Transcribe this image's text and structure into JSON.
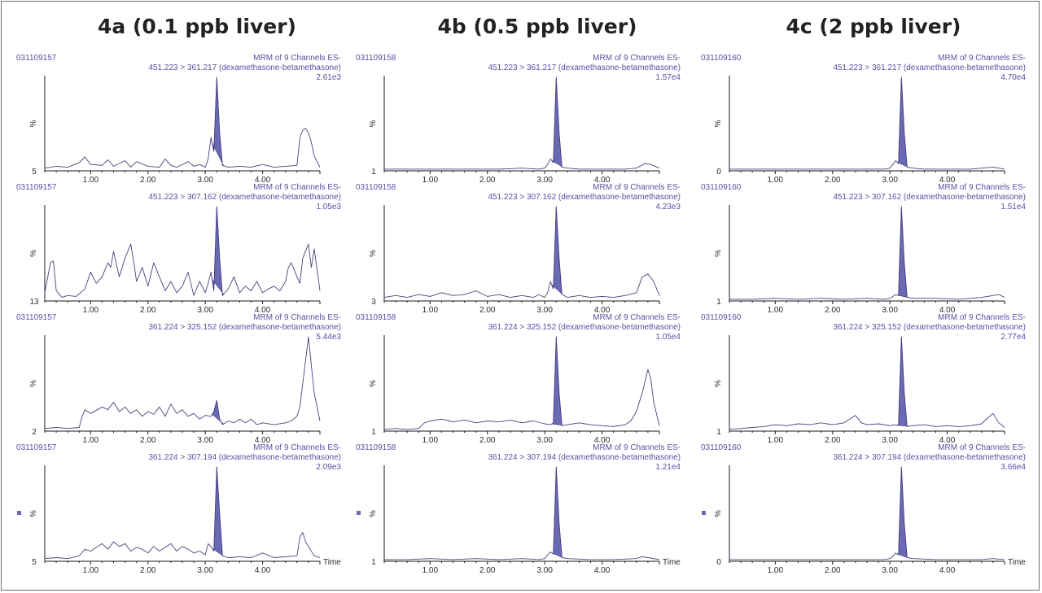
{
  "figure": {
    "column_titles": [
      "4a (0.1 ppb liver)",
      "4b (0.5 ppb liver)",
      "4c (2 ppb liver)"
    ],
    "percent_label": "%",
    "time_label": "Time",
    "colors": {
      "trace": "#4a4180",
      "peak_fill": "#6a6ab4",
      "text": "#5a4fa3",
      "axis": "#1a1a1a"
    }
  },
  "chart_data": [
    {
      "type": "line",
      "column": "4a (0.1 ppb liver)",
      "sample_id": "031109157",
      "header": "MRM of 9 Channels ES-",
      "transition": "451.223 > 361.217 (dexamethasone-betamethasone)",
      "intensity": "2.61e3",
      "y_min_label": "5",
      "xticks": [
        "1.00",
        "2.00",
        "3.00",
        "4.00"
      ],
      "xlim": [
        0.2,
        5.0
      ],
      "ylim": [
        0,
        100
      ],
      "peak": {
        "start": 3.12,
        "end": 3.32
      },
      "x": [
        0.2,
        0.4,
        0.6,
        0.8,
        0.9,
        1.0,
        1.2,
        1.3,
        1.4,
        1.6,
        1.7,
        1.8,
        2.0,
        2.2,
        2.3,
        2.4,
        2.5,
        2.7,
        2.8,
        2.9,
        3.0,
        3.05,
        3.1,
        3.15,
        3.2,
        3.25,
        3.3,
        3.4,
        3.6,
        3.8,
        4.0,
        4.2,
        4.4,
        4.6,
        4.65,
        4.7,
        4.75,
        4.8,
        4.85,
        4.9,
        5.0
      ],
      "y": [
        2,
        4,
        3,
        8,
        14,
        6,
        5,
        11,
        4,
        10,
        3,
        9,
        4,
        3,
        12,
        5,
        3,
        9,
        4,
        6,
        3,
        12,
        35,
        20,
        100,
        40,
        5,
        3,
        4,
        3,
        6,
        3,
        4,
        5,
        35,
        43,
        45,
        40,
        30,
        15,
        3
      ]
    },
    {
      "type": "line",
      "column": "4a (0.1 ppb liver)",
      "sample_id": "031109157",
      "header": "MRM of 9 Channels ES-",
      "transition": "451.223 > 307.162 (dexamethasone-betamethasone)",
      "intensity": "1.05e3",
      "y_min_label": "13",
      "xticks": [
        "1.00",
        "2.00",
        "3.00",
        "4.00"
      ],
      "xlim": [
        0.2,
        5.0
      ],
      "ylim": [
        0,
        100
      ],
      "peak": {
        "start": 3.12,
        "end": 3.32
      },
      "x": [
        0.2,
        0.3,
        0.35,
        0.4,
        0.5,
        0.6,
        0.75,
        0.9,
        1.0,
        1.1,
        1.2,
        1.3,
        1.35,
        1.4,
        1.5,
        1.6,
        1.7,
        1.75,
        1.8,
        1.9,
        2.0,
        2.1,
        2.2,
        2.3,
        2.4,
        2.5,
        2.6,
        2.7,
        2.8,
        2.9,
        3.0,
        3.05,
        3.1,
        3.15,
        3.2,
        3.25,
        3.3,
        3.4,
        3.5,
        3.6,
        3.7,
        3.8,
        3.9,
        4.0,
        4.1,
        4.2,
        4.3,
        4.4,
        4.45,
        4.5,
        4.6,
        4.65,
        4.7,
        4.8,
        4.85,
        4.9,
        5.0
      ],
      "y": [
        8,
        40,
        42,
        10,
        3,
        5,
        4,
        12,
        30,
        18,
        25,
        40,
        35,
        52,
        25,
        45,
        60,
        42,
        20,
        35,
        15,
        40,
        25,
        10,
        20,
        8,
        15,
        30,
        5,
        20,
        8,
        18,
        30,
        10,
        100,
        45,
        5,
        12,
        25,
        8,
        15,
        10,
        20,
        8,
        12,
        15,
        10,
        20,
        35,
        40,
        25,
        18,
        45,
        60,
        35,
        55,
        10
      ]
    },
    {
      "type": "line",
      "column": "4a (0.1 ppb liver)",
      "sample_id": "031109157",
      "header": "MRM of 9 Channels ES-",
      "transition": "361.224 > 325.152 (dexamethasone-betamethasone)",
      "intensity": "5.44e3",
      "y_min_label": "2",
      "xticks": [
        "1.00",
        "2.00",
        "3.00",
        "4.00"
      ],
      "xlim": [
        0.2,
        5.0
      ],
      "ylim": [
        0,
        100
      ],
      "peak": {
        "start": 3.12,
        "end": 3.32
      },
      "x": [
        0.2,
        0.4,
        0.6,
        0.8,
        0.85,
        0.9,
        1.0,
        1.2,
        1.3,
        1.4,
        1.5,
        1.6,
        1.7,
        1.8,
        1.9,
        2.0,
        2.1,
        2.2,
        2.3,
        2.4,
        2.5,
        2.6,
        2.7,
        2.8,
        2.9,
        3.0,
        3.1,
        3.15,
        3.2,
        3.25,
        3.3,
        3.4,
        3.5,
        3.6,
        3.7,
        3.8,
        3.9,
        4.0,
        4.2,
        4.4,
        4.5,
        4.6,
        4.65,
        4.7,
        4.75,
        4.8,
        4.85,
        4.9,
        5.0
      ],
      "y": [
        2,
        3,
        2,
        3,
        15,
        22,
        18,
        25,
        22,
        30,
        20,
        25,
        18,
        22,
        15,
        20,
        17,
        25,
        15,
        28,
        18,
        22,
        15,
        18,
        12,
        16,
        15,
        20,
        32,
        12,
        6,
        10,
        8,
        12,
        8,
        12,
        6,
        8,
        6,
        8,
        10,
        15,
        25,
        50,
        75,
        100,
        70,
        40,
        10
      ]
    },
    {
      "type": "line",
      "column": "4a (0.1 ppb liver)",
      "sample_id": "031109157",
      "header": "MRM of 9 Channels ES-",
      "transition": "361.224 > 307.194 (dexamethasone-betamethasone)",
      "intensity": "2.09e3",
      "y_min_label": "5",
      "xticks": [
        "1.00",
        "2.00",
        "3.00",
        "4.00"
      ],
      "xlim": [
        0.2,
        5.0
      ],
      "ylim": [
        0,
        100
      ],
      "peak": {
        "start": 3.12,
        "end": 3.32
      },
      "x": [
        0.2,
        0.4,
        0.6,
        0.8,
        0.9,
        1.0,
        1.1,
        1.2,
        1.3,
        1.4,
        1.5,
        1.6,
        1.7,
        1.8,
        1.9,
        2.0,
        2.1,
        2.2,
        2.3,
        2.4,
        2.5,
        2.6,
        2.7,
        2.8,
        2.9,
        3.0,
        3.05,
        3.1,
        3.15,
        3.2,
        3.25,
        3.3,
        3.4,
        3.6,
        3.8,
        4.0,
        4.2,
        4.4,
        4.6,
        4.65,
        4.7,
        4.75,
        4.8,
        4.9,
        5.0
      ],
      "y": [
        2,
        3,
        2,
        5,
        12,
        10,
        14,
        18,
        12,
        20,
        15,
        18,
        10,
        14,
        12,
        8,
        15,
        10,
        14,
        18,
        10,
        15,
        12,
        8,
        10,
        6,
        18,
        15,
        10,
        100,
        50,
        5,
        3,
        4,
        3,
        8,
        3,
        4,
        5,
        25,
        30,
        20,
        15,
        5,
        3
      ]
    },
    {
      "type": "line",
      "column": "4b (0.5 ppb liver)",
      "sample_id": "031109158",
      "header": "MRM of 9 Channels ES-",
      "transition": "451.223 > 361.217 (dexamethasone-betamethasone)",
      "intensity": "1.57e4",
      "y_min_label": "1",
      "xticks": [
        "1.00",
        "2.00",
        "3.00",
        "4.00"
      ],
      "xlim": [
        0.2,
        5.0
      ],
      "ylim": [
        0,
        100
      ],
      "peak": {
        "start": 3.12,
        "end": 3.32
      },
      "x": [
        0.2,
        0.6,
        1.0,
        1.4,
        1.8,
        2.2,
        2.6,
        2.9,
        3.0,
        3.05,
        3.1,
        3.15,
        3.2,
        3.25,
        3.3,
        3.4,
        3.6,
        4.0,
        4.4,
        4.6,
        4.75,
        4.85,
        5.0
      ],
      "y": [
        1,
        1,
        1,
        1,
        1,
        1,
        2,
        1,
        2,
        6,
        12,
        8,
        100,
        40,
        3,
        2,
        1,
        1,
        1,
        2,
        7,
        6,
        2
      ]
    },
    {
      "type": "line",
      "column": "4b (0.5 ppb liver)",
      "sample_id": "031109158",
      "header": "MRM of 9 Channels ES-",
      "transition": "451.223 > 307.162 (dexamethasone-betamethasone)",
      "intensity": "4.23e3",
      "y_min_label": "3",
      "xticks": [
        "1.00",
        "2.00",
        "3.00",
        "4.00"
      ],
      "xlim": [
        0.2,
        5.0
      ],
      "ylim": [
        0,
        100
      ],
      "peak": {
        "start": 3.12,
        "end": 3.32
      },
      "x": [
        0.2,
        0.4,
        0.6,
        0.8,
        1.0,
        1.2,
        1.4,
        1.6,
        1.8,
        2.0,
        2.2,
        2.4,
        2.6,
        2.8,
        2.9,
        3.0,
        3.05,
        3.1,
        3.15,
        3.2,
        3.25,
        3.3,
        3.4,
        3.6,
        3.8,
        4.0,
        4.2,
        4.4,
        4.6,
        4.7,
        4.8,
        4.9,
        5.0
      ],
      "y": [
        3,
        5,
        3,
        6,
        4,
        8,
        5,
        6,
        10,
        4,
        6,
        3,
        5,
        3,
        6,
        3,
        8,
        20,
        12,
        100,
        45,
        6,
        3,
        5,
        3,
        4,
        3,
        5,
        8,
        25,
        28,
        20,
        5
      ]
    },
    {
      "type": "line",
      "column": "4b (0.5 ppb liver)",
      "sample_id": "031109158",
      "header": "MRM of 9 Channels ES-",
      "transition": "361.224 > 325.152 (dexamethasone-betamethasone)",
      "intensity": "1.05e4",
      "y_min_label": "1",
      "xticks": [
        "1.00",
        "2.00",
        "3.00",
        "4.00"
      ],
      "xlim": [
        0.2,
        5.0
      ],
      "ylim": [
        0,
        100
      ],
      "peak": {
        "start": 3.12,
        "end": 3.32
      },
      "x": [
        0.2,
        0.4,
        0.6,
        0.8,
        0.9,
        1.0,
        1.2,
        1.4,
        1.6,
        1.8,
        2.0,
        2.2,
        2.4,
        2.6,
        2.8,
        3.0,
        3.1,
        3.15,
        3.2,
        3.25,
        3.3,
        3.4,
        3.6,
        3.8,
        4.0,
        4.2,
        4.4,
        4.5,
        4.6,
        4.7,
        4.8,
        4.85,
        4.9,
        5.0
      ],
      "y": [
        1,
        2,
        1,
        2,
        8,
        10,
        12,
        9,
        11,
        8,
        10,
        9,
        11,
        8,
        10,
        7,
        6,
        8,
        100,
        40,
        5,
        6,
        8,
        6,
        5,
        4,
        6,
        10,
        20,
        40,
        65,
        55,
        30,
        5
      ]
    },
    {
      "type": "line",
      "column": "4b (0.5 ppb liver)",
      "sample_id": "031109158",
      "header": "MRM of 9 Channels ES-",
      "transition": "361.224 > 307.194 (dexamethasone-betamethasone)",
      "intensity": "1.21e4",
      "y_min_label": "1",
      "xticks": [
        "1.00",
        "2.00",
        "3.00",
        "4.00"
      ],
      "xlim": [
        0.2,
        5.0
      ],
      "ylim": [
        0,
        100
      ],
      "peak": {
        "start": 3.12,
        "end": 3.32
      },
      "x": [
        0.2,
        0.6,
        1.0,
        1.4,
        1.8,
        2.2,
        2.6,
        2.9,
        3.0,
        3.05,
        3.1,
        3.15,
        3.2,
        3.25,
        3.3,
        3.4,
        3.8,
        4.2,
        4.6,
        4.7,
        4.8,
        5.0
      ],
      "y": [
        1,
        1,
        2,
        1,
        2,
        1,
        2,
        1,
        2,
        6,
        9,
        7,
        100,
        40,
        3,
        2,
        1,
        1,
        2,
        4,
        3,
        1
      ]
    },
    {
      "type": "line",
      "column": "4c (2 ppb liver)",
      "sample_id": "031109160",
      "header": "MRM of 9 Channels ES-",
      "transition": "451.223 > 361.217 (dexamethasone-betamethasone)",
      "intensity": "4.70e4",
      "y_min_label": "0",
      "xticks": [
        "1.00",
        "2.00",
        "3.00",
        "4.00"
      ],
      "xlim": [
        0.2,
        5.0
      ],
      "ylim": [
        0,
        100
      ],
      "peak": {
        "start": 3.12,
        "end": 3.32
      },
      "x": [
        0.2,
        0.6,
        1.0,
        1.4,
        1.8,
        2.2,
        2.6,
        2.9,
        3.0,
        3.05,
        3.1,
        3.15,
        3.2,
        3.25,
        3.3,
        3.4,
        3.6,
        4.0,
        4.4,
        4.6,
        4.8,
        4.9,
        5.0
      ],
      "y": [
        1,
        1,
        1,
        1,
        1,
        1,
        1,
        1,
        2,
        6,
        10,
        7,
        100,
        40,
        3,
        2,
        1,
        1,
        1,
        2,
        3,
        2,
        1
      ]
    },
    {
      "type": "line",
      "column": "4c (2 ppb liver)",
      "sample_id": "031109160",
      "header": "MRM of 9 Channels ES-",
      "transition": "451.223 > 307.162 (dexamethasone-betamethasone)",
      "intensity": "1.51e4",
      "y_min_label": "1",
      "xticks": [
        "1.00",
        "2.00",
        "3.00",
        "4.00"
      ],
      "xlim": [
        0.2,
        5.0
      ],
      "ylim": [
        0,
        100
      ],
      "peak": {
        "start": 3.12,
        "end": 3.32
      },
      "x": [
        0.2,
        0.6,
        1.0,
        1.4,
        1.8,
        2.2,
        2.6,
        2.9,
        3.0,
        3.05,
        3.1,
        3.15,
        3.2,
        3.25,
        3.3,
        3.4,
        3.8,
        4.2,
        4.6,
        4.8,
        4.9,
        5.0
      ],
      "y": [
        1,
        1,
        2,
        1,
        2,
        1,
        2,
        1,
        2,
        4,
        6,
        5,
        100,
        40,
        3,
        2,
        2,
        1,
        3,
        5,
        6,
        3
      ]
    },
    {
      "type": "line",
      "column": "4c (2 ppb liver)",
      "sample_id": "031109160",
      "header": "MRM of 9 Channels ES-",
      "transition": "361.224 > 325.152 (dexamethasone-betamethasone)",
      "intensity": "2.77e4",
      "y_min_label": "1",
      "xticks": [
        "1.00",
        "2.00",
        "3.00",
        "4.00"
      ],
      "xlim": [
        0.2,
        5.0
      ],
      "ylim": [
        0,
        100
      ],
      "peak": {
        "start": 3.12,
        "end": 3.32
      },
      "x": [
        0.2,
        0.4,
        0.6,
        0.8,
        1.0,
        1.2,
        1.4,
        1.6,
        1.8,
        2.0,
        2.2,
        2.35,
        2.4,
        2.5,
        2.6,
        2.8,
        3.0,
        3.1,
        3.15,
        3.2,
        3.25,
        3.3,
        3.4,
        3.6,
        3.8,
        4.0,
        4.2,
        4.4,
        4.6,
        4.7,
        4.8,
        4.9,
        5.0
      ],
      "y": [
        1,
        2,
        3,
        4,
        6,
        5,
        7,
        6,
        8,
        6,
        8,
        14,
        16,
        8,
        6,
        7,
        5,
        6,
        5,
        100,
        40,
        4,
        5,
        6,
        4,
        5,
        4,
        5,
        7,
        13,
        18,
        8,
        3
      ]
    },
    {
      "type": "line",
      "column": "4c (2 ppb liver)",
      "sample_id": "031109160",
      "header": "MRM of 9 Channels ES-",
      "transition": "361.224 > 307.194 (dexamethasone-betamethasone)",
      "intensity": "3.66e4",
      "y_min_label": "0",
      "xticks": [
        "1.00",
        "2.00",
        "3.00",
        "4.00"
      ],
      "xlim": [
        0.2,
        5.0
      ],
      "ylim": [
        0,
        100
      ],
      "peak": {
        "start": 3.12,
        "end": 3.32
      },
      "x": [
        0.2,
        0.6,
        1.0,
        1.4,
        1.8,
        2.2,
        2.6,
        2.9,
        3.0,
        3.05,
        3.1,
        3.15,
        3.2,
        3.25,
        3.3,
        3.4,
        3.8,
        4.2,
        4.6,
        4.8,
        5.0
      ],
      "y": [
        1,
        1,
        1,
        1,
        1,
        1,
        1,
        1,
        2,
        4,
        8,
        6,
        100,
        40,
        3,
        2,
        1,
        1,
        1,
        2,
        1
      ]
    }
  ]
}
